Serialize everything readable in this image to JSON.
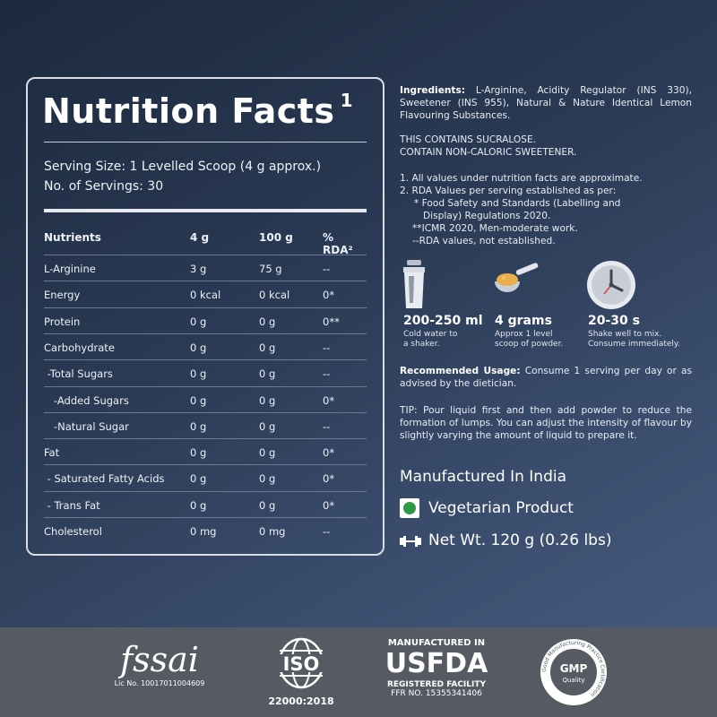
{
  "nutrition": {
    "title": "Nutrition Facts",
    "title_sup": "1",
    "serving_size": "Serving Size: 1 Levelled Scoop (4 g approx.)",
    "servings": "No. of Servings: 30",
    "headers": [
      "Nutrients",
      "4 g",
      "100 g",
      "% RDA²"
    ],
    "rows": [
      [
        "L-Arginine",
        "3 g",
        "75 g",
        "--"
      ],
      [
        "Energy",
        "0 kcal",
        "0 kcal",
        "0*"
      ],
      [
        "Protein",
        "0 g",
        "0 g",
        "0**"
      ],
      [
        "Carbohydrate",
        "0 g",
        "0 g",
        "--"
      ],
      [
        " -Total Sugars",
        "0 g",
        "0 g",
        "--"
      ],
      [
        "   -Added Sugars",
        "0 g",
        "0 g",
        "0*"
      ],
      [
        "   -Natural Sugar",
        "0 g",
        "0 g",
        "--"
      ],
      [
        "Fat",
        "0 g",
        "0 g",
        "0*"
      ],
      [
        " - Saturated Fatty Acids",
        "0 g",
        "0 g",
        "0*"
      ],
      [
        " - Trans Fat",
        "0 g",
        "0 g",
        "0*"
      ],
      [
        "Cholesterol",
        "0 mg",
        "0 mg",
        "--"
      ]
    ]
  },
  "info": {
    "ingredients_label": "Ingredients:",
    "ingredients_text": " L-Arginine, Acidity Regulator (INS 330), Sweetener (INS 955), Natural & Nature Identical Lemon Flavouring Substances.",
    "sucralose_1": "THIS CONTAINS SUCRALOSE.",
    "sucralose_2": "CONTAIN NON-CALORIC SWEETENER.",
    "note_1": "1.  All values under nutrition facts  are approximate.",
    "note_2": "2.  RDA Values per serving established as per:",
    "note_3": "* Food Safety and Standards (Labelling and",
    "note_4": "Display) Regulations 2020.",
    "note_5": "**ICMR 2020, Men-moderate work.",
    "note_6": "--RDA values, not established.",
    "step1_title": "200-250 ml",
    "step1_sub_1": "Cold water to",
    "step1_sub_2": "a shaker.",
    "step2_title": "4 grams",
    "step2_sub_1": "Approx 1 level",
    "step2_sub_2": "scoop of powder.",
    "step3_title": "20-30 s",
    "step3_sub_1": "Shake well to mix.",
    "step3_sub_2": "Consume immediately.",
    "usage_label": "Recommended Usage:",
    "usage_text": " Consume 1 serving per day or as advised by the dietician.",
    "tip": "TIP: Pour liquid first and then add powder to reduce the formation of lumps. You can adjust the intensity of flavour by slightly varying the amount of liquid to prepare it.",
    "manufactured": "Manufactured In India",
    "veg": "Vegetarian Product",
    "net_wt": "Net Wt. 120 g (0.26 lbs)"
  },
  "footer": {
    "fssai": "fssai",
    "fssai_lic": "Lic No. 10017011004609",
    "iso_text": "ISO",
    "iso_num": "22000:2018",
    "usfda_top": "MANUFACTURED IN",
    "usfda": "USFDA",
    "usfda_reg": "REGISTERED FACILITY",
    "usfda_ffr": "FFR NO. 15355341406",
    "gmp": "GMP",
    "gmp_quality": "Quality",
    "gmp_ring": "Good Manufacturing Practice Certification"
  },
  "colors": {
    "bg_top": "#1c2a3e",
    "bg_bottom": "#4a5d80",
    "footer": "#555a63",
    "veg_green": "#2e9a46"
  }
}
